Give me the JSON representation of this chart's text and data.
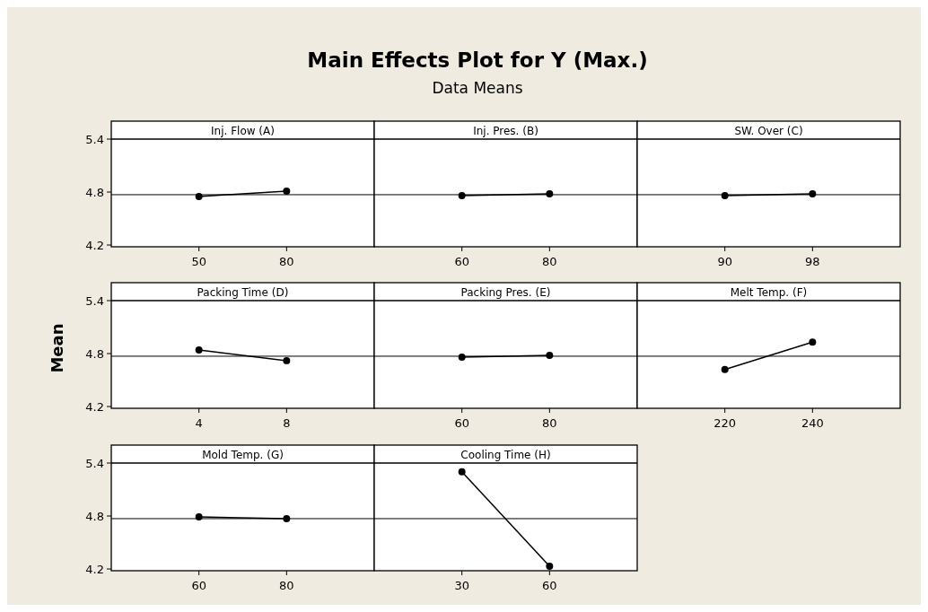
{
  "chart_data": [
    {
      "type": "other",
      "title": "Main Effects Plot for Y (Max.)",
      "subtitle": "Data Means",
      "ylabel": "Mean"
    },
    {
      "type": "line",
      "title": "Inj. Flow (A)",
      "categories": [
        "50",
        "80"
      ],
      "series": [
        {
          "color": "#000000",
          "values": [
            4.75,
            4.81
          ]
        }
      ],
      "ylim": [
        4.18,
        5.4
      ],
      "yticks": [
        4.2,
        4.8,
        5.4
      ],
      "ref_lines": [
        {
          "axis": "y",
          "value": 4.77,
          "color": "#000000"
        }
      ],
      "marker": "circle",
      "grid": false
    },
    {
      "type": "line",
      "title": "Inj. Pres. (B)",
      "categories": [
        "60",
        "80"
      ],
      "series": [
        {
          "color": "#000000",
          "values": [
            4.76,
            4.78
          ]
        }
      ],
      "ylim": [
        4.18,
        5.4
      ],
      "ref_lines": [
        {
          "axis": "y",
          "value": 4.77,
          "color": "#000000"
        }
      ],
      "marker": "circle",
      "grid": false,
      "tick_labels": "x"
    },
    {
      "type": "line",
      "title": "SW. Over (C)",
      "categories": [
        "90",
        "98"
      ],
      "series": [
        {
          "color": "#000000",
          "values": [
            4.76,
            4.78
          ]
        }
      ],
      "ylim": [
        4.18,
        5.4
      ],
      "ref_lines": [
        {
          "axis": "y",
          "value": 4.77,
          "color": "#000000"
        }
      ],
      "marker": "circle",
      "grid": false,
      "tick_labels": "x"
    },
    {
      "type": "line",
      "title": "Packing Time (D)",
      "categories": [
        "4",
        "8"
      ],
      "series": [
        {
          "color": "#000000",
          "values": [
            4.84,
            4.72
          ]
        }
      ],
      "ylim": [
        4.18,
        5.4
      ],
      "yticks": [
        4.2,
        4.8,
        5.4
      ],
      "ref_lines": [
        {
          "axis": "y",
          "value": 4.77,
          "color": "#000000"
        }
      ],
      "marker": "circle",
      "grid": false
    },
    {
      "type": "line",
      "title": "Packing Pres. (E)",
      "categories": [
        "60",
        "80"
      ],
      "series": [
        {
          "color": "#000000",
          "values": [
            4.76,
            4.78
          ]
        }
      ],
      "ylim": [
        4.18,
        5.4
      ],
      "ref_lines": [
        {
          "axis": "y",
          "value": 4.77,
          "color": "#000000"
        }
      ],
      "marker": "circle",
      "grid": false,
      "tick_labels": "x"
    },
    {
      "type": "line",
      "title": "Melt Temp. (F)",
      "categories": [
        "220",
        "240"
      ],
      "series": [
        {
          "color": "#000000",
          "values": [
            4.62,
            4.93
          ]
        }
      ],
      "ylim": [
        4.18,
        5.4
      ],
      "ref_lines": [
        {
          "axis": "y",
          "value": 4.77,
          "color": "#000000"
        }
      ],
      "marker": "circle",
      "grid": false,
      "tick_labels": "x"
    },
    {
      "type": "line",
      "title": "Mold Temp. (G)",
      "categories": [
        "60",
        "80"
      ],
      "series": [
        {
          "color": "#000000",
          "values": [
            4.79,
            4.77
          ]
        }
      ],
      "ylim": [
        4.18,
        5.4
      ],
      "yticks": [
        4.2,
        4.8,
        5.4
      ],
      "ref_lines": [
        {
          "axis": "y",
          "value": 4.77,
          "color": "#000000"
        }
      ],
      "marker": "circle",
      "grid": false
    },
    {
      "type": "line",
      "title": "Cooling Time (H)",
      "categories": [
        "30",
        "60"
      ],
      "series": [
        {
          "color": "#000000",
          "values": [
            5.3,
            4.23
          ]
        }
      ],
      "ylim": [
        4.18,
        5.4
      ],
      "ref_lines": [
        {
          "axis": "y",
          "value": 4.77,
          "color": "#000000"
        }
      ],
      "marker": "circle",
      "grid": false,
      "tick_labels": "x"
    }
  ]
}
